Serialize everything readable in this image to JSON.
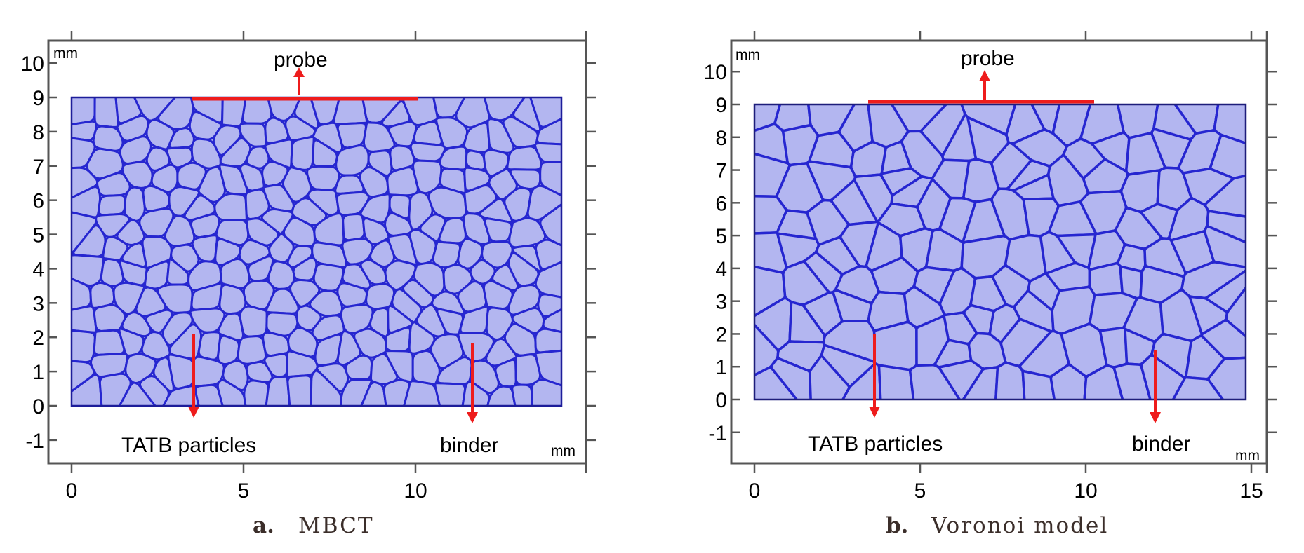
{
  "colors": {
    "cell_fill": "#b3b6f0",
    "cell_border": "#2626d0",
    "arrow": "#ee1c1c",
    "frame": "#555555"
  },
  "panels": [
    {
      "id": "a",
      "caption_letter": "a.",
      "caption_text": "MBCT",
      "unit_top": "mm",
      "unit_bottom": "mm",
      "x_ticks": [
        "0",
        "5",
        "10"
      ],
      "y_ticks": [
        "10",
        "9",
        "8",
        "7",
        "6",
        "5",
        "4",
        "3",
        "2",
        "1",
        "0",
        "-1"
      ],
      "labels": {
        "probe": "probe",
        "particles": "TATB particles",
        "binder": "binder"
      },
      "x_range": [
        0,
        14.3
      ],
      "y_range": [
        0,
        9
      ],
      "probe_segment": [
        3.5,
        10
      ],
      "cells": 260
    },
    {
      "id": "b",
      "caption_letter": "b.",
      "caption_text": "Voronoi model",
      "unit_top": "mm",
      "unit_bottom": "mm",
      "x_ticks": [
        "0",
        "5",
        "10",
        "15"
      ],
      "y_ticks": [
        "10",
        "9",
        "8",
        "7",
        "6",
        "5",
        "4",
        "3",
        "2",
        "1",
        "0",
        "-1"
      ],
      "labels": {
        "probe": "probe",
        "particles": "TATB particles",
        "binder": "binder"
      },
      "x_range": [
        0,
        15
      ],
      "y_range": [
        0,
        9
      ],
      "probe_segment": [
        3.5,
        10.3
      ],
      "cells": 150
    }
  ]
}
